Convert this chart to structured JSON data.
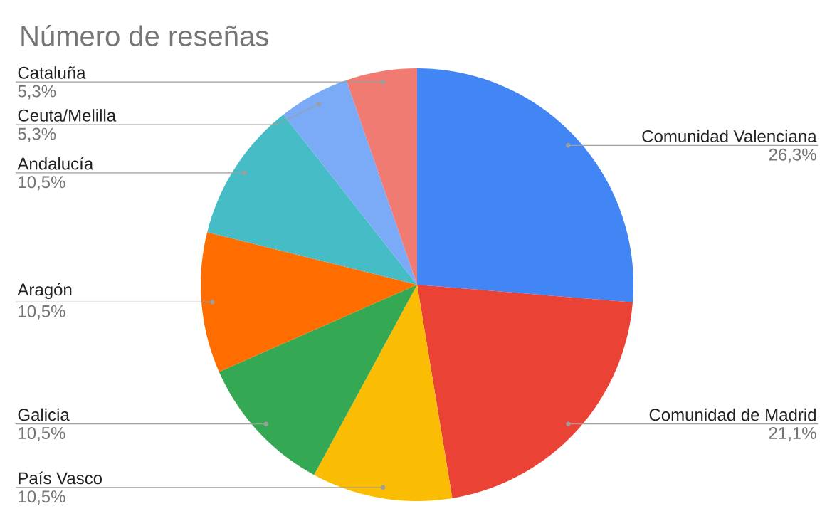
{
  "chart_data": {
    "type": "pie",
    "title": "Número de reseñas",
    "categories": [
      "Comunidad Valenciana",
      "Comunidad de Madrid",
      "País Vasco",
      "Galicia",
      "Aragón",
      "Andalucía",
      "Ceuta/Melilla",
      "Cataluña"
    ],
    "values": [
      26.3,
      21.1,
      10.5,
      10.5,
      10.5,
      10.5,
      5.3,
      5.3
    ],
    "value_labels": [
      "26,3%",
      "21,1%",
      "10,5%",
      "10,5%",
      "10,5%",
      "10,5%",
      "5,3%",
      "5,3%"
    ],
    "colors": [
      "#4285f4",
      "#ea4335",
      "#fbbc04",
      "#34a853",
      "#ff6d01",
      "#46bdc6",
      "#7baaf7",
      "#f07b72"
    ]
  }
}
